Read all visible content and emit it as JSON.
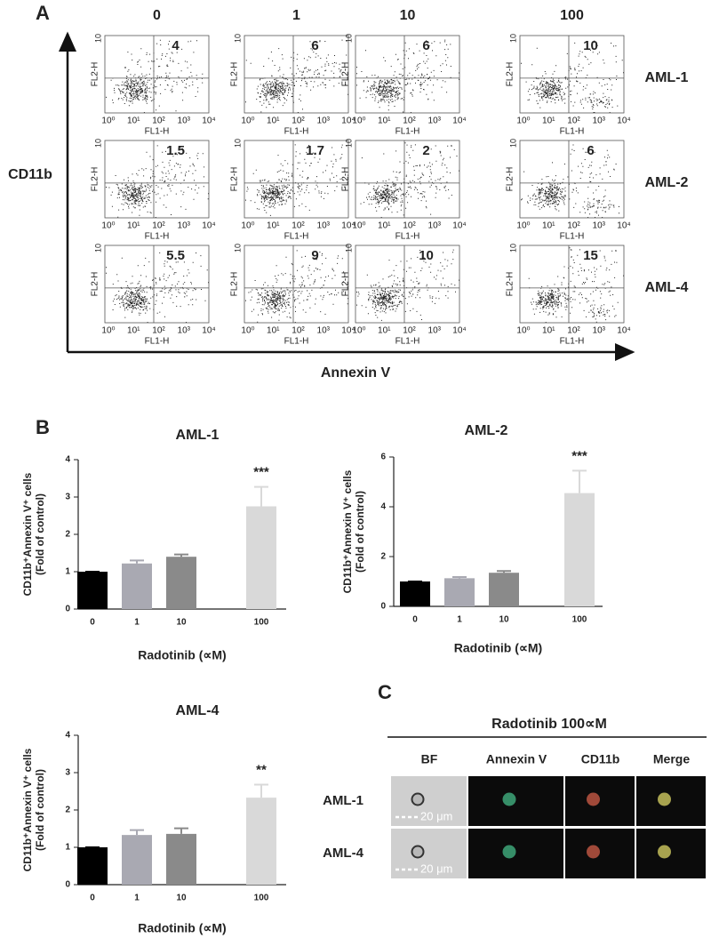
{
  "panel_a": {
    "label": "A",
    "columns": [
      "0",
      "1",
      "10",
      "100"
    ],
    "rows": [
      "AML-1",
      "AML-2",
      "AML-4"
    ],
    "quadrant_values": [
      [
        4,
        6,
        6,
        10
      ],
      [
        1.5,
        1.7,
        2,
        6
      ],
      [
        5.5,
        9,
        10,
        15
      ]
    ],
    "x_ticks": [
      "10⁰",
      "10¹",
      "10²",
      "10³",
      "10⁴"
    ],
    "y_tick": "10",
    "plot_x_label": "FL1-H",
    "plot_y_label": "FL2-H",
    "y_label": "CD11b",
    "x_label": "Annexin V"
  },
  "panel_b": {
    "label": "B"
  },
  "chart_data": [
    {
      "type": "bar",
      "title": "AML-1",
      "categories": [
        "0",
        "1",
        "10",
        "100"
      ],
      "values": [
        1.0,
        1.22,
        1.4,
        2.75
      ],
      "errors": [
        0,
        0.08,
        0.06,
        0.52
      ],
      "significance": [
        null,
        null,
        null,
        "***"
      ],
      "colors": [
        "#000000",
        "#a9a9b2",
        "#8a8a8a",
        "#d9d9d9"
      ],
      "ylim": [
        0,
        4
      ],
      "yticks": [
        0,
        1,
        2,
        3,
        4
      ],
      "x_label": "Radotinib (∝M)",
      "y_label": [
        "CD11b⁺Annexin V⁺ cells",
        "(Fold of control)"
      ]
    },
    {
      "type": "bar",
      "title": "AML-2",
      "categories": [
        "0",
        "1",
        "10",
        "100"
      ],
      "values": [
        1.0,
        1.13,
        1.35,
        4.55
      ],
      "errors": [
        0,
        0.05,
        0.07,
        0.9
      ],
      "significance": [
        null,
        null,
        null,
        "***"
      ],
      "colors": [
        "#000000",
        "#a9a9b2",
        "#8a8a8a",
        "#d9d9d9"
      ],
      "ylim": [
        0,
        6
      ],
      "yticks": [
        0,
        2,
        4,
        6
      ],
      "x_label": "Radotinib (∝M)",
      "y_label": [
        "CD11b⁺Annexin V⁺ cells",
        "(Fold of control)"
      ]
    },
    {
      "type": "bar",
      "title": "AML-4",
      "categories": [
        "0",
        "1",
        "10",
        "100"
      ],
      "values": [
        1.0,
        1.33,
        1.36,
        2.33
      ],
      "errors": [
        0,
        0.13,
        0.15,
        0.35
      ],
      "significance": [
        null,
        null,
        null,
        "**"
      ],
      "colors": [
        "#000000",
        "#a9a9b2",
        "#8a8a8a",
        "#d9d9d9"
      ],
      "ylim": [
        0,
        4
      ],
      "yticks": [
        0,
        1,
        2,
        3,
        4
      ],
      "x_label": "Radotinib (∝M)",
      "y_label": [
        "CD11b⁺Annexin V⁺ cells",
        "(Fold of control)"
      ]
    }
  ],
  "panel_c": {
    "label": "C",
    "title": "Radotinib 100∝M",
    "columns": [
      "BF",
      "Annexin V",
      "CD11b",
      "Merge"
    ],
    "rows": [
      "AML-1",
      "AML-4"
    ],
    "scale_bar": "20 μm"
  }
}
